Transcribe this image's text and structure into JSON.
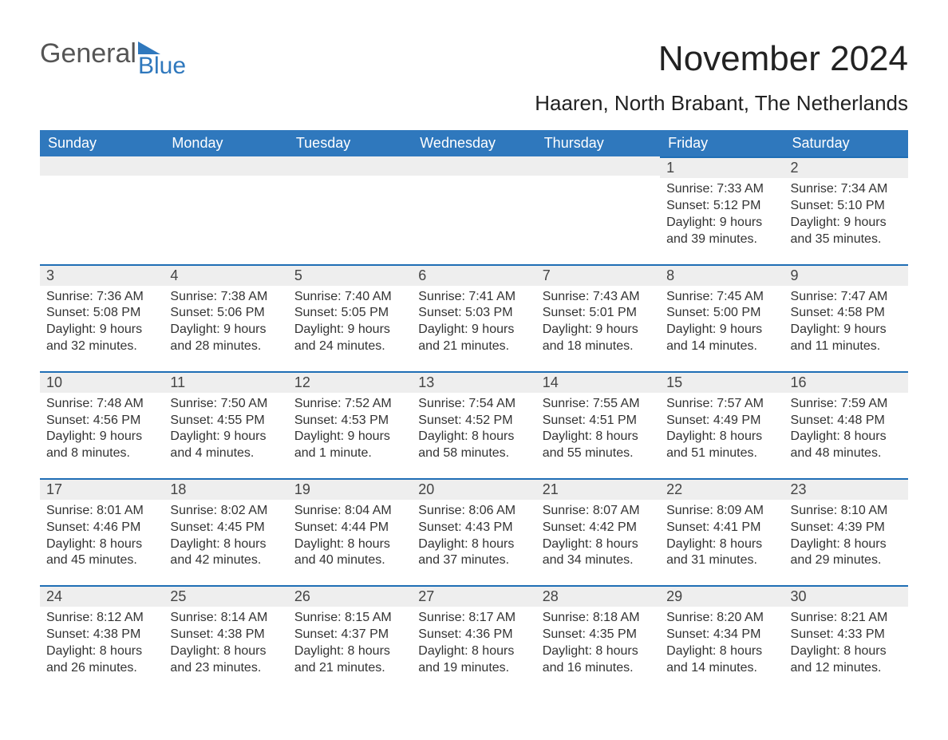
{
  "logo": {
    "word1": "General",
    "word2": "Blue"
  },
  "title": "November 2024",
  "location": "Haaren, North Brabant, The Netherlands",
  "weekdays": [
    "Sunday",
    "Monday",
    "Tuesday",
    "Wednesday",
    "Thursday",
    "Friday",
    "Saturday"
  ],
  "colors": {
    "header_blue": "#2f78bd",
    "accent_blue": "#1f6eb5",
    "row_gray": "#eeeeee",
    "background": "#ffffff",
    "text": "#333333",
    "logo_gray": "#555555"
  },
  "fonts": {
    "title_size_pt": 33,
    "location_size_pt": 20,
    "weekday_size_pt": 14,
    "daynum_size_pt": 14,
    "body_size_pt": 12
  },
  "calendar": {
    "type": "table",
    "columns": 7,
    "rows": 5,
    "leading_blanks": 5,
    "days": [
      {
        "n": 1,
        "sunrise": "7:33 AM",
        "sunset": "5:12 PM",
        "daylight": "9 hours and 39 minutes."
      },
      {
        "n": 2,
        "sunrise": "7:34 AM",
        "sunset": "5:10 PM",
        "daylight": "9 hours and 35 minutes."
      },
      {
        "n": 3,
        "sunrise": "7:36 AM",
        "sunset": "5:08 PM",
        "daylight": "9 hours and 32 minutes."
      },
      {
        "n": 4,
        "sunrise": "7:38 AM",
        "sunset": "5:06 PM",
        "daylight": "9 hours and 28 minutes."
      },
      {
        "n": 5,
        "sunrise": "7:40 AM",
        "sunset": "5:05 PM",
        "daylight": "9 hours and 24 minutes."
      },
      {
        "n": 6,
        "sunrise": "7:41 AM",
        "sunset": "5:03 PM",
        "daylight": "9 hours and 21 minutes."
      },
      {
        "n": 7,
        "sunrise": "7:43 AM",
        "sunset": "5:01 PM",
        "daylight": "9 hours and 18 minutes."
      },
      {
        "n": 8,
        "sunrise": "7:45 AM",
        "sunset": "5:00 PM",
        "daylight": "9 hours and 14 minutes."
      },
      {
        "n": 9,
        "sunrise": "7:47 AM",
        "sunset": "4:58 PM",
        "daylight": "9 hours and 11 minutes."
      },
      {
        "n": 10,
        "sunrise": "7:48 AM",
        "sunset": "4:56 PM",
        "daylight": "9 hours and 8 minutes."
      },
      {
        "n": 11,
        "sunrise": "7:50 AM",
        "sunset": "4:55 PM",
        "daylight": "9 hours and 4 minutes."
      },
      {
        "n": 12,
        "sunrise": "7:52 AM",
        "sunset": "4:53 PM",
        "daylight": "9 hours and 1 minute."
      },
      {
        "n": 13,
        "sunrise": "7:54 AM",
        "sunset": "4:52 PM",
        "daylight": "8 hours and 58 minutes."
      },
      {
        "n": 14,
        "sunrise": "7:55 AM",
        "sunset": "4:51 PM",
        "daylight": "8 hours and 55 minutes."
      },
      {
        "n": 15,
        "sunrise": "7:57 AM",
        "sunset": "4:49 PM",
        "daylight": "8 hours and 51 minutes."
      },
      {
        "n": 16,
        "sunrise": "7:59 AM",
        "sunset": "4:48 PM",
        "daylight": "8 hours and 48 minutes."
      },
      {
        "n": 17,
        "sunrise": "8:01 AM",
        "sunset": "4:46 PM",
        "daylight": "8 hours and 45 minutes."
      },
      {
        "n": 18,
        "sunrise": "8:02 AM",
        "sunset": "4:45 PM",
        "daylight": "8 hours and 42 minutes."
      },
      {
        "n": 19,
        "sunrise": "8:04 AM",
        "sunset": "4:44 PM",
        "daylight": "8 hours and 40 minutes."
      },
      {
        "n": 20,
        "sunrise": "8:06 AM",
        "sunset": "4:43 PM",
        "daylight": "8 hours and 37 minutes."
      },
      {
        "n": 21,
        "sunrise": "8:07 AM",
        "sunset": "4:42 PM",
        "daylight": "8 hours and 34 minutes."
      },
      {
        "n": 22,
        "sunrise": "8:09 AM",
        "sunset": "4:41 PM",
        "daylight": "8 hours and 31 minutes."
      },
      {
        "n": 23,
        "sunrise": "8:10 AM",
        "sunset": "4:39 PM",
        "daylight": "8 hours and 29 minutes."
      },
      {
        "n": 24,
        "sunrise": "8:12 AM",
        "sunset": "4:38 PM",
        "daylight": "8 hours and 26 minutes."
      },
      {
        "n": 25,
        "sunrise": "8:14 AM",
        "sunset": "4:38 PM",
        "daylight": "8 hours and 23 minutes."
      },
      {
        "n": 26,
        "sunrise": "8:15 AM",
        "sunset": "4:37 PM",
        "daylight": "8 hours and 21 minutes."
      },
      {
        "n": 27,
        "sunrise": "8:17 AM",
        "sunset": "4:36 PM",
        "daylight": "8 hours and 19 minutes."
      },
      {
        "n": 28,
        "sunrise": "8:18 AM",
        "sunset": "4:35 PM",
        "daylight": "8 hours and 16 minutes."
      },
      {
        "n": 29,
        "sunrise": "8:20 AM",
        "sunset": "4:34 PM",
        "daylight": "8 hours and 14 minutes."
      },
      {
        "n": 30,
        "sunrise": "8:21 AM",
        "sunset": "4:33 PM",
        "daylight": "8 hours and 12 minutes."
      }
    ],
    "labels": {
      "sunrise": "Sunrise:",
      "sunset": "Sunset:",
      "daylight": "Daylight:"
    }
  }
}
